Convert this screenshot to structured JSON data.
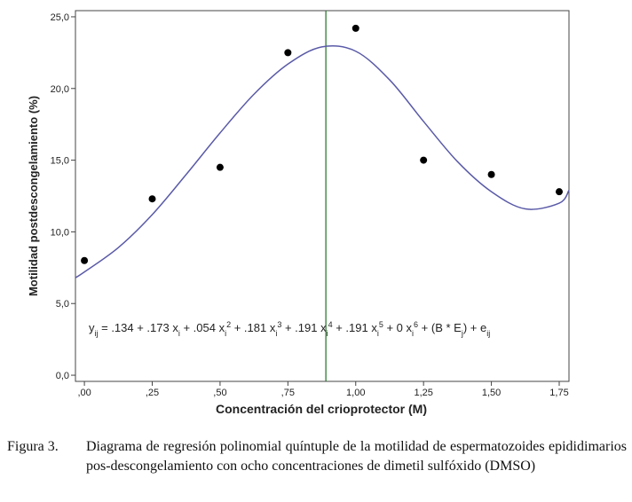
{
  "chart_data": {
    "type": "scatter",
    "x_label": "Concentración del crioprotector (M)",
    "y_label": "Motilidad postdescongelamiento (%)",
    "xlim": [
      -0.033,
      1.786
    ],
    "ylim": [
      -0.43,
      25.43
    ],
    "xticks": [
      {
        "value": 0,
        "label": ",00"
      },
      {
        "value": 0.25,
        "label": ",25"
      },
      {
        "value": 0.5,
        "label": ",50"
      },
      {
        "value": 0.75,
        "label": ",75"
      },
      {
        "value": 1,
        "label": "1,00"
      },
      {
        "value": 1.25,
        "label": "1,25"
      },
      {
        "value": 1.5,
        "label": "1,50"
      },
      {
        "value": 1.75,
        "label": "1,75"
      }
    ],
    "yticks": [
      {
        "value": 0,
        "label": "0,0"
      },
      {
        "value": 5,
        "label": "5,0"
      },
      {
        "value": 10,
        "label": "10,0"
      },
      {
        "value": 15,
        "label": "15,0"
      },
      {
        "value": 20,
        "label": "20,0"
      },
      {
        "value": 25,
        "label": "25,0"
      }
    ],
    "points": {
      "color": "#000000",
      "x": [
        0,
        0.25,
        0.5,
        0.75,
        1.0,
        1.25,
        1.5,
        1.75
      ],
      "y": [
        8.0,
        12.3,
        14.5,
        22.5,
        24.2,
        15.0,
        14.0,
        12.8
      ]
    },
    "fit": {
      "color": "#5a5aa8",
      "x": [
        -0.033,
        0,
        0.125,
        0.25,
        0.375,
        0.5,
        0.625,
        0.75,
        0.875,
        1.0,
        1.125,
        1.25,
        1.375,
        1.5,
        1.625,
        1.75,
        1.786
      ],
      "y": [
        6.8,
        7.2,
        8.9,
        11.2,
        14.0,
        16.9,
        19.6,
        21.7,
        22.9,
        22.6,
        20.6,
        17.7,
        14.9,
        12.8,
        11.6,
        12.0,
        12.9
      ]
    },
    "vline": {
      "x": 0.89,
      "color": "#2e7d32"
    },
    "equation": [
      {
        "text": "y"
      },
      {
        "sub": "ij"
      },
      {
        "text": " = .134 + .173 x"
      },
      {
        "sub": "i"
      },
      {
        "text": " + .054 x"
      },
      {
        "sub": "i"
      },
      {
        "sup": "2"
      },
      {
        "text": " + .181 x"
      },
      {
        "sub": "i"
      },
      {
        "sup": "3"
      },
      {
        "text": " + .191 x"
      },
      {
        "sub": "i"
      },
      {
        "sup": "4"
      },
      {
        "text": " + .191 x"
      },
      {
        "sub": "i"
      },
      {
        "sup": "5"
      },
      {
        "text": " + 0 x"
      },
      {
        "sub": "i"
      },
      {
        "sup": "6"
      },
      {
        "text": " + (B * E"
      },
      {
        "sub": "j"
      },
      {
        "text": ") + e"
      },
      {
        "sub": "ij"
      }
    ]
  },
  "caption": {
    "label": "Figura 3.",
    "text": "Diagrama de regresión polinomial quíntuple de la motilidad de espermatozoides epididimarios pos-descongelamiento con ocho concentraciones de dimetil sulfóxido (DMSO)"
  }
}
